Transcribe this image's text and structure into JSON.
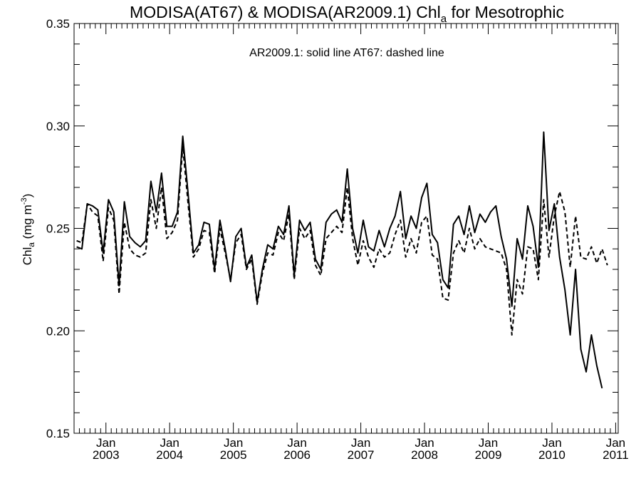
{
  "chart_data": {
    "type": "line",
    "title_main": "MODISA(AT67) & MODISA(AR2009.1)  Chl",
    "title_sub": "a",
    "title_tail": " for Mesotrophic",
    "ylabel_main": "Chl",
    "ylabel_sub": "a",
    "ylabel_units": " (mg m",
    "ylabel_exp": "-3",
    "ylabel_close": ")",
    "annotation": "AR2009.1: solid line   AT67: dashed line",
    "x_tick_top": "Jan",
    "x_ticks": [
      {
        "label": "2003",
        "x": 2003.0
      },
      {
        "label": "2004",
        "x": 2004.0
      },
      {
        "label": "2005",
        "x": 2005.0
      },
      {
        "label": "2006",
        "x": 2006.0
      },
      {
        "label": "2007",
        "x": 2007.0
      },
      {
        "label": "2008",
        "x": 2008.0
      },
      {
        "label": "2009",
        "x": 2009.0
      },
      {
        "label": "2010",
        "x": 2010.0
      },
      {
        "label": "2011",
        "x": 2011.0
      }
    ],
    "y_ticks": [
      "0.15",
      "0.20",
      "0.25",
      "0.30",
      "0.35"
    ],
    "xlim": [
      2002.5,
      2011.04
    ],
    "ylim": [
      0.15,
      0.35
    ],
    "x_start": 2002.54,
    "x_step": 0.0833,
    "series": [
      {
        "name": "AR2009.1",
        "style": "solid",
        "values": [
          0.241,
          0.24,
          0.262,
          0.261,
          0.259,
          0.238,
          0.264,
          0.258,
          0.222,
          0.263,
          0.246,
          0.243,
          0.241,
          0.244,
          0.273,
          0.258,
          0.277,
          0.251,
          0.251,
          0.258,
          0.295,
          0.267,
          0.238,
          0.242,
          0.253,
          0.252,
          0.23,
          0.254,
          0.24,
          0.224,
          0.246,
          0.25,
          0.231,
          0.237,
          0.214,
          0.23,
          0.242,
          0.24,
          0.251,
          0.247,
          0.261,
          0.227,
          0.254,
          0.249,
          0.253,
          0.235,
          0.23,
          0.253,
          0.257,
          0.259,
          0.253,
          0.279,
          0.25,
          0.238,
          0.254,
          0.241,
          0.239,
          0.249,
          0.241,
          0.25,
          0.256,
          0.268,
          0.245,
          0.256,
          0.25,
          0.265,
          0.272,
          0.247,
          0.243,
          0.225,
          0.221,
          0.252,
          0.256,
          0.247,
          0.261,
          0.248,
          0.257,
          0.253,
          0.258,
          0.261,
          0.246,
          0.235,
          0.212,
          0.245,
          0.235,
          0.261,
          0.251,
          0.231,
          0.297,
          0.249,
          0.262,
          0.236,
          0.22,
          0.198,
          0.23,
          0.191,
          0.18,
          0.198,
          0.183,
          0.172
        ]
      },
      {
        "name": "AT67",
        "style": "dashed",
        "values": [
          0.244,
          0.243,
          0.262,
          0.258,
          0.256,
          0.234,
          0.26,
          0.254,
          0.218,
          0.253,
          0.24,
          0.237,
          0.236,
          0.238,
          0.264,
          0.25,
          0.27,
          0.245,
          0.248,
          0.254,
          0.29,
          0.262,
          0.236,
          0.24,
          0.249,
          0.248,
          0.228,
          0.25,
          0.238,
          0.225,
          0.243,
          0.247,
          0.23,
          0.235,
          0.213,
          0.228,
          0.238,
          0.237,
          0.248,
          0.244,
          0.257,
          0.225,
          0.25,
          0.245,
          0.249,
          0.232,
          0.227,
          0.245,
          0.248,
          0.251,
          0.248,
          0.27,
          0.245,
          0.232,
          0.244,
          0.236,
          0.231,
          0.24,
          0.236,
          0.238,
          0.247,
          0.254,
          0.236,
          0.245,
          0.238,
          0.253,
          0.256,
          0.237,
          0.235,
          0.216,
          0.215,
          0.238,
          0.244,
          0.238,
          0.25,
          0.24,
          0.245,
          0.241,
          0.24,
          0.239,
          0.238,
          0.23,
          0.198,
          0.225,
          0.218,
          0.241,
          0.24,
          0.225,
          0.264,
          0.236,
          0.256,
          0.268,
          0.258,
          0.231,
          0.256,
          0.236,
          0.235,
          0.241,
          0.233,
          0.24,
          0.232
        ]
      }
    ]
  }
}
